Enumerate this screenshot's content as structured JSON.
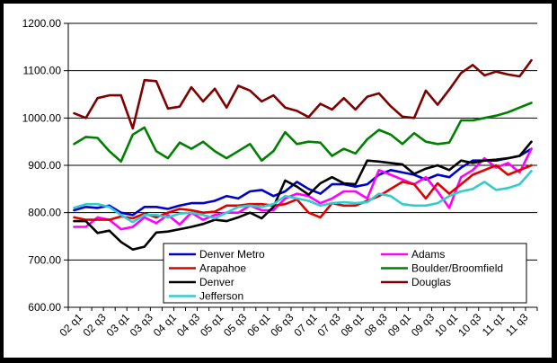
{
  "chart_data": {
    "type": "line",
    "title": "",
    "xlabel": "",
    "ylabel": "",
    "ylim": [
      600,
      1200
    ],
    "yticks": [
      "600.00",
      "700.00",
      "800.00",
      "900.00",
      "1000.00",
      "1100.00",
      "1200.00"
    ],
    "grid": "horizontal major gridlines",
    "legend_position": "bottom-center, inside plot area",
    "categories": [
      "02 q1",
      "02 q2",
      "02 q3",
      "02 q4",
      "03 q1",
      "03 q2",
      "03 q3",
      "03 q4",
      "04 q1",
      "04 q2",
      "04 q3",
      "04 q4",
      "05 q1",
      "05 q2",
      "05 q3",
      "05 q4",
      "06 q1",
      "06 q2",
      "06 q3",
      "06 q4",
      "07 q1",
      "07 q2",
      "07 q3",
      "07 q4",
      "08 q1",
      "08 q2",
      "08 q3",
      "08 q4",
      "09 q1",
      "09 q2",
      "09 q3",
      "09 q4",
      "10 q1",
      "10 q2",
      "10 q3",
      "10 q4",
      "11 q1",
      "11 q2",
      "11 q3",
      "11 q4"
    ],
    "xtick_labels": [
      "02 q1",
      "02 q3",
      "03 q1",
      "03 q3",
      "04 q1",
      "04 q3",
      "05 q1",
      "05 q3",
      "06 q1",
      "06 q3",
      "07 q1",
      "07 q3",
      "08 q1",
      "08 q3",
      "09 q1",
      "09 q3",
      "10 q1",
      "10 q3",
      "11 q1",
      "11 q3"
    ],
    "series": [
      {
        "name": "Denver Metro",
        "color": "#0000cc",
        "values": [
          805,
          812,
          810,
          815,
          800,
          795,
          812,
          812,
          808,
          815,
          820,
          820,
          825,
          835,
          830,
          845,
          848,
          835,
          845,
          865,
          850,
          840,
          860,
          860,
          855,
          860,
          880,
          890,
          885,
          880,
          870,
          880,
          875,
          895,
          910,
          910,
          910,
          915,
          920,
          935
        ]
      },
      {
        "name": "Adams",
        "color": "#ff00ff",
        "values": [
          770,
          770,
          790,
          785,
          765,
          770,
          790,
          778,
          795,
          775,
          800,
          785,
          795,
          800,
          800,
          815,
          805,
          805,
          830,
          840,
          835,
          820,
          830,
          845,
          845,
          830,
          890,
          880,
          870,
          860,
          875,
          845,
          810,
          875,
          890,
          915,
          895,
          905,
          885,
          935
        ]
      },
      {
        "name": "Arapahoe",
        "color": "#e00000",
        "values": [
          790,
          785,
          785,
          785,
          792,
          788,
          798,
          790,
          800,
          808,
          805,
          800,
          802,
          815,
          815,
          818,
          818,
          815,
          818,
          828,
          800,
          790,
          820,
          815,
          815,
          825,
          835,
          850,
          865,
          860,
          830,
          862,
          840,
          860,
          880,
          890,
          900,
          880,
          890,
          900
        ]
      },
      {
        "name": "Boulder/Broomfield",
        "color": "#008000",
        "values": [
          945,
          960,
          958,
          930,
          908,
          965,
          980,
          930,
          915,
          948,
          935,
          950,
          930,
          915,
          930,
          945,
          910,
          930,
          970,
          945,
          950,
          948,
          920,
          935,
          925,
          955,
          975,
          965,
          945,
          968,
          950,
          945,
          948,
          995,
          995,
          1000,
          1005,
          1012,
          1022,
          1032
        ]
      },
      {
        "name": "Denver",
        "color": "#000000",
        "values": [
          782,
          782,
          757,
          762,
          738,
          722,
          728,
          758,
          760,
          765,
          770,
          776,
          785,
          782,
          790,
          800,
          788,
          812,
          868,
          855,
          838,
          862,
          875,
          862,
          860,
          910,
          908,
          905,
          902,
          882,
          893,
          900,
          890,
          910,
          905,
          910,
          912,
          915,
          920,
          950
        ]
      },
      {
        "name": "Douglas",
        "color": "#800000",
        "values": [
          1010,
          1000,
          1042,
          1048,
          1048,
          978,
          1080,
          1078,
          1020,
          1024,
          1065,
          1035,
          1062,
          1022,
          1068,
          1058,
          1035,
          1048,
          1022,
          1015,
          1002,
          1030,
          1018,
          1042,
          1018,
          1045,
          1052,
          1025,
          1003,
          1000,
          1058,
          1028,
          1060,
          1095,
          1112,
          1090,
          1098,
          1092,
          1088,
          1122
        ]
      },
      {
        "name": "Jefferson",
        "color": "#33cccc",
        "values": [
          810,
          818,
          818,
          812,
          795,
          780,
          795,
          795,
          790,
          798,
          800,
          795,
          788,
          800,
          812,
          815,
          812,
          818,
          835,
          830,
          825,
          815,
          820,
          822,
          820,
          822,
          840,
          835,
          818,
          815,
          815,
          820,
          835,
          845,
          850,
          865,
          848,
          852,
          860,
          888
        ]
      }
    ]
  }
}
